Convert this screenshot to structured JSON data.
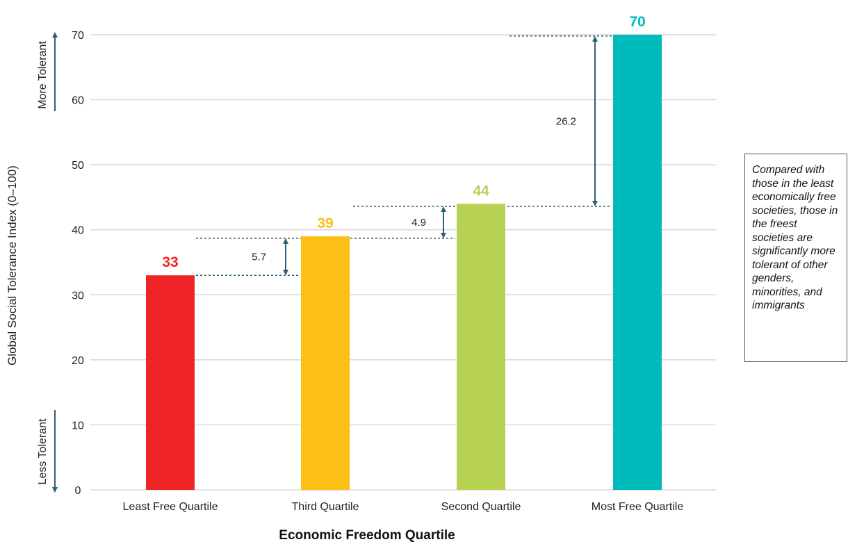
{
  "chart_data": {
    "type": "bar",
    "title": "",
    "xlabel": "Economic Freedom Quartile",
    "ylabel": "Global Social Tolerance Index (0–100)",
    "categories": [
      "Least Free Quartile",
      "Third Quartile",
      "Second Quartile",
      "Most Free Quartile"
    ],
    "values": [
      33,
      39,
      44,
      70
    ],
    "value_labels": [
      "33",
      "39",
      "44",
      "70"
    ],
    "colors": [
      "#ee2426",
      "#fbbf15",
      "#b7d153",
      "#00bbbb"
    ],
    "ylim": [
      0,
      70
    ],
    "yticks": [
      0,
      10,
      20,
      30,
      40,
      50,
      60,
      70
    ],
    "grid": true,
    "differences": [
      {
        "label": "5.7",
        "from": 33,
        "to": 38.7
      },
      {
        "label": "4.9",
        "from": 38.7,
        "to": 43.6
      },
      {
        "label": "26.2",
        "from": 43.6,
        "to": 69.8
      }
    ],
    "side_labels": {
      "top": "More Tolerant",
      "bottom": "Less Tolerant",
      "arrow_color": "#2b5f78"
    },
    "annotation": "Compared with those in the least economically free societies, those in the freest societies are significantly more tolerant of other genders, minorities, and immigrants"
  }
}
